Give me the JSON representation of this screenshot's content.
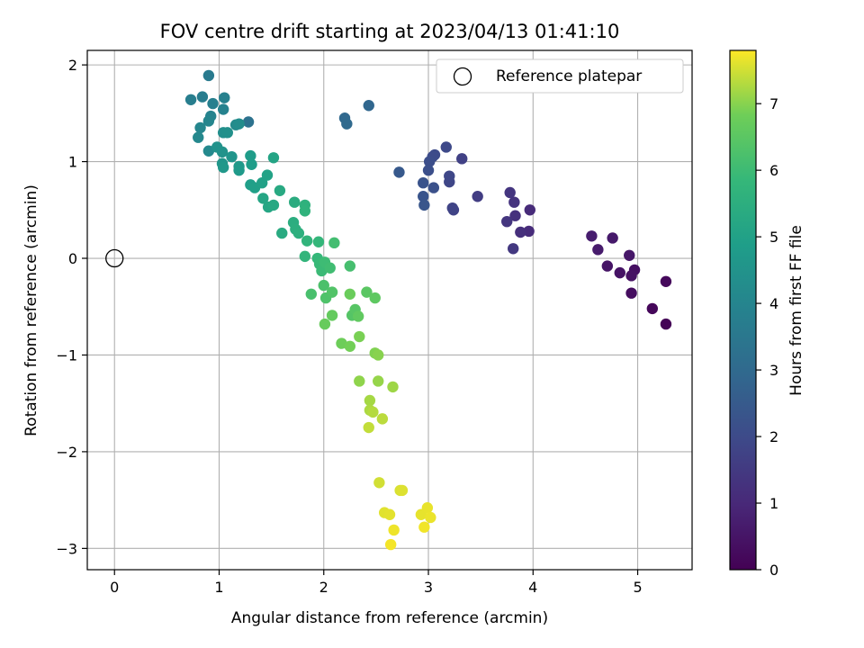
{
  "chart_data": {
    "type": "scatter",
    "title": "FOV centre drift starting at 2023/04/13 01:41:10",
    "xlabel": "Angular distance from reference (arcmin)",
    "ylabel": "Rotation from reference (arcmin)",
    "xlim": [
      -0.26,
      5.52
    ],
    "ylim": [
      -3.22,
      2.15
    ],
    "xticks": [
      0,
      1,
      2,
      3,
      4,
      5
    ],
    "yticks": [
      -3,
      -2,
      -1,
      0,
      1,
      2
    ],
    "xtick_labels": [
      "0",
      "1",
      "2",
      "3",
      "4",
      "5"
    ],
    "ytick_labels": [
      "−3",
      "−2",
      "−1",
      "0",
      "1",
      "2"
    ],
    "grid": true,
    "colormap": "viridis",
    "colorbar": {
      "label": "Hours from first FF file",
      "range": [
        0,
        7.8
      ],
      "ticks": [
        0,
        1,
        2,
        3,
        4,
        5,
        6,
        7
      ],
      "tick_labels": [
        "0",
        "1",
        "2",
        "3",
        "4",
        "5",
        "6",
        "7"
      ]
    },
    "legend": {
      "position": "top-right",
      "entries": [
        {
          "label": "Reference platepar",
          "marker": "open-circle"
        }
      ]
    },
    "reference_point": {
      "x": 0,
      "y": 0
    },
    "points": [
      [
        5.27,
        -0.68,
        0.05
      ],
      [
        5.14,
        -0.52,
        0.15
      ],
      [
        5.27,
        -0.24,
        0.2
      ],
      [
        4.94,
        -0.36,
        0.3
      ],
      [
        4.97,
        -0.12,
        0.35
      ],
      [
        4.94,
        -0.18,
        0.4
      ],
      [
        4.83,
        -0.15,
        0.45
      ],
      [
        4.71,
        -0.08,
        0.5
      ],
      [
        4.92,
        0.03,
        0.55
      ],
      [
        4.76,
        0.21,
        0.6
      ],
      [
        4.62,
        0.09,
        0.65
      ],
      [
        4.56,
        0.23,
        0.7
      ],
      [
        3.97,
        0.5,
        1.05
      ],
      [
        3.96,
        0.28,
        1.1
      ],
      [
        3.88,
        0.27,
        1.2
      ],
      [
        3.83,
        0.44,
        1.25
      ],
      [
        3.82,
        0.58,
        1.3
      ],
      [
        3.78,
        0.68,
        1.35
      ],
      [
        3.75,
        0.38,
        1.4
      ],
      [
        3.81,
        0.1,
        1.45
      ],
      [
        3.47,
        0.64,
        1.6
      ],
      [
        3.32,
        1.03,
        1.7
      ],
      [
        3.24,
        0.5,
        1.75
      ],
      [
        3.23,
        0.52,
        1.8
      ],
      [
        3.2,
        0.79,
        1.85
      ],
      [
        3.2,
        0.85,
        1.9
      ],
      [
        3.17,
        1.15,
        1.95
      ],
      [
        3.06,
        1.07,
        2.0
      ],
      [
        3.04,
        1.05,
        2.05
      ],
      [
        3.01,
        1.0,
        2.1
      ],
      [
        3.0,
        0.91,
        2.15
      ],
      [
        3.05,
        0.73,
        2.2
      ],
      [
        2.95,
        0.78,
        2.25
      ],
      [
        2.95,
        0.64,
        2.3
      ],
      [
        2.96,
        0.55,
        2.35
      ],
      [
        2.72,
        0.89,
        2.45
      ],
      [
        2.43,
        1.58,
        2.9
      ],
      [
        2.2,
        1.45,
        2.95
      ],
      [
        2.22,
        1.39,
        3.0
      ],
      [
        1.28,
        1.41,
        3.3
      ],
      [
        0.9,
        1.89,
        3.6
      ],
      [
        0.84,
        1.67,
        3.7
      ],
      [
        0.73,
        1.64,
        3.75
      ],
      [
        0.94,
        1.6,
        3.8
      ],
      [
        1.05,
        1.66,
        3.85
      ],
      [
        1.04,
        1.54,
        3.9
      ],
      [
        0.92,
        1.47,
        3.95
      ],
      [
        0.9,
        1.42,
        4.0
      ],
      [
        0.82,
        1.35,
        4.05
      ],
      [
        0.8,
        1.25,
        4.1
      ],
      [
        0.9,
        1.11,
        4.15
      ],
      [
        1.16,
        1.38,
        4.2
      ],
      [
        1.19,
        1.39,
        4.3
      ],
      [
        1.04,
        1.3,
        4.35
      ],
      [
        1.08,
        1.3,
        4.4
      ],
      [
        0.98,
        1.15,
        4.45
      ],
      [
        1.03,
        1.1,
        4.5
      ],
      [
        1.12,
        1.05,
        4.55
      ],
      [
        1.03,
        0.98,
        4.6
      ],
      [
        1.04,
        0.94,
        4.65
      ],
      [
        1.19,
        0.95,
        4.7
      ],
      [
        1.19,
        0.91,
        4.75
      ],
      [
        1.3,
        1.06,
        4.8
      ],
      [
        1.31,
        0.97,
        4.85
      ],
      [
        1.3,
        0.76,
        4.9
      ],
      [
        1.34,
        0.73,
        4.95
      ],
      [
        1.41,
        0.78,
        5.0
      ],
      [
        1.46,
        0.86,
        5.05
      ],
      [
        1.52,
        1.04,
        5.1
      ],
      [
        1.42,
        0.62,
        5.15
      ],
      [
        1.47,
        0.53,
        5.2
      ],
      [
        1.52,
        0.55,
        5.25
      ],
      [
        1.58,
        0.7,
        5.3
      ],
      [
        1.6,
        0.26,
        5.35
      ],
      [
        1.72,
        0.58,
        5.4
      ],
      [
        1.71,
        0.37,
        5.45
      ],
      [
        1.73,
        0.3,
        5.5
      ],
      [
        1.76,
        0.26,
        5.55
      ],
      [
        1.82,
        0.55,
        5.6
      ],
      [
        1.82,
        0.49,
        5.65
      ],
      [
        1.84,
        0.18,
        5.7
      ],
      [
        1.82,
        0.02,
        5.75
      ],
      [
        1.95,
        0.17,
        5.8
      ],
      [
        1.94,
        0.0,
        5.85
      ],
      [
        1.96,
        -0.06,
        5.9
      ],
      [
        1.98,
        -0.13,
        5.95
      ],
      [
        2.01,
        -0.04,
        6.0
      ],
      [
        2.06,
        -0.1,
        6.05
      ],
      [
        2.1,
        0.16,
        6.1
      ],
      [
        2.25,
        -0.08,
        6.15
      ],
      [
        1.88,
        -0.37,
        6.2
      ],
      [
        2.0,
        -0.28,
        6.25
      ],
      [
        2.02,
        -0.41,
        6.3
      ],
      [
        2.08,
        -0.35,
        6.35
      ],
      [
        2.27,
        -0.59,
        6.4
      ],
      [
        2.3,
        -0.53,
        6.45
      ],
      [
        2.41,
        -0.35,
        6.5
      ],
      [
        2.49,
        -0.41,
        6.55
      ],
      [
        2.33,
        -0.6,
        6.6
      ],
      [
        2.08,
        -0.59,
        6.65
      ],
      [
        2.01,
        -0.68,
        6.7
      ],
      [
        2.25,
        -0.37,
        6.75
      ],
      [
        2.17,
        -0.88,
        6.8
      ],
      [
        2.25,
        -0.91,
        6.85
      ],
      [
        2.34,
        -0.81,
        6.9
      ],
      [
        2.49,
        -0.98,
        6.95
      ],
      [
        2.52,
        -1.0,
        7.0
      ],
      [
        2.34,
        -1.27,
        7.05
      ],
      [
        2.52,
        -1.27,
        7.1
      ],
      [
        2.66,
        -1.33,
        7.15
      ],
      [
        2.44,
        -1.47,
        7.2
      ],
      [
        2.44,
        -1.57,
        7.25
      ],
      [
        2.47,
        -1.59,
        7.3
      ],
      [
        2.56,
        -1.66,
        7.35
      ],
      [
        2.43,
        -1.75,
        7.4
      ],
      [
        2.53,
        -2.32,
        7.5
      ],
      [
        2.73,
        -2.4,
        7.55
      ],
      [
        2.75,
        -2.4,
        7.58
      ],
      [
        2.58,
        -2.63,
        7.6
      ],
      [
        2.63,
        -2.65,
        7.62
      ],
      [
        2.93,
        -2.65,
        7.64
      ],
      [
        2.99,
        -2.58,
        7.66
      ],
      [
        3.02,
        -2.68,
        7.68
      ],
      [
        2.67,
        -2.81,
        7.7
      ],
      [
        2.96,
        -2.78,
        7.72
      ],
      [
        2.64,
        -2.96,
        7.74
      ]
    ]
  }
}
